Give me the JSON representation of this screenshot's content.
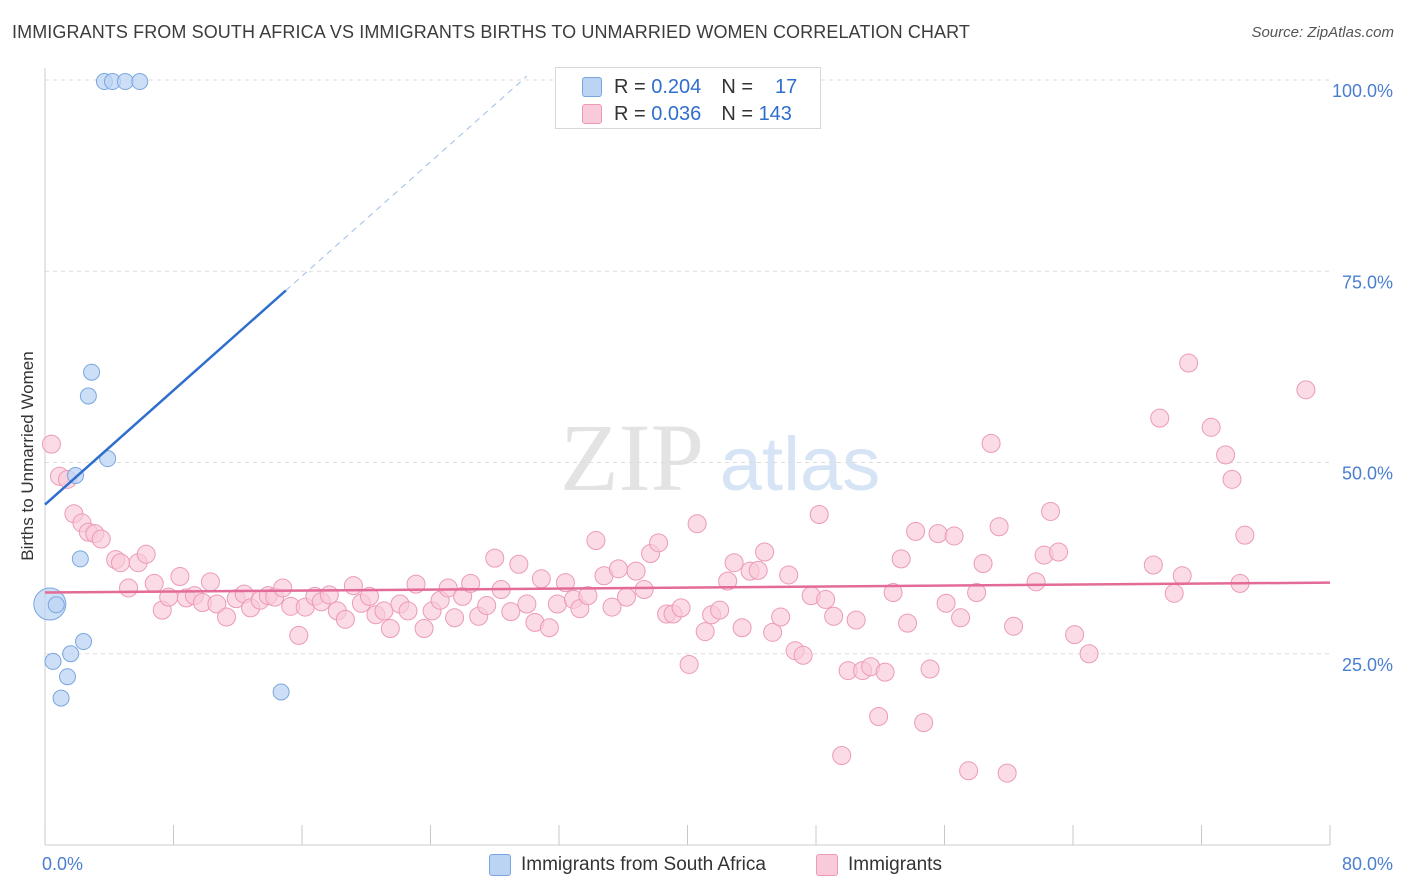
{
  "header": {
    "title": "IMMIGRANTS FROM SOUTH AFRICA VS IMMIGRANTS BIRTHS TO UNMARRIED WOMEN CORRELATION CHART",
    "source": "Source: ZipAtlas.com"
  },
  "watermark": {
    "part1": "ZIP",
    "part2": "atlas"
  },
  "legend": {
    "rows": [
      {
        "r_label": "R =",
        "r_value": "0.204",
        "n_label": "N =",
        "n_value": "17"
      },
      {
        "r_label": "R =",
        "r_value": "0.036",
        "n_label": "N =",
        "n_value": "143"
      }
    ]
  },
  "bottom_legend": {
    "series1": "Immigrants from South Africa",
    "series2": "Immigrants"
  },
  "colors": {
    "series1_fill": "#bcd4f3",
    "series1_stroke": "#7aa6df",
    "series1_line": "#2f6fcc",
    "series2_fill": "#f9cad9",
    "series2_stroke": "#ec9ab8",
    "series2_line": "#e36b97",
    "tick_text": "#4a7fd0",
    "grid": "#dddddd"
  },
  "chart_data": {
    "type": "scatter",
    "title": "IMMIGRANTS FROM SOUTH AFRICA VS IMMIGRANTS BIRTHS TO UNMARRIED WOMEN CORRELATION CHART",
    "xlabel": "",
    "ylabel": "Births to Unmarried Women",
    "xlim": [
      0,
      80
    ],
    "ylim": [
      0,
      100
    ],
    "x_ticks": [
      0,
      8,
      16,
      24,
      32,
      40,
      48,
      56,
      64,
      72,
      80
    ],
    "x_tick_labels": [
      {
        "value": 0,
        "label": "0.0%"
      },
      {
        "value": 80,
        "label": "80.0%"
      }
    ],
    "y_ticks": [
      {
        "value": 25,
        "label": "25.0%"
      },
      {
        "value": 50,
        "label": "50.0%"
      },
      {
        "value": 75,
        "label": "75.0%"
      },
      {
        "value": 100,
        "label": "100.0%"
      }
    ],
    "grid": "horizontal-dashed",
    "legend_position": "top-center",
    "series": [
      {
        "name": "Immigrants from South Africa",
        "r": 0.204,
        "n": 17,
        "trend": {
          "x0": 0,
          "y0": 44.5,
          "x1": 15,
          "y1": 72.5,
          "dashed_to_x": 30,
          "dashed_to_y": 100.5
        },
        "points": [
          {
            "x": 3.7,
            "y": 99.8
          },
          {
            "x": 4.2,
            "y": 99.8
          },
          {
            "x": 5.0,
            "y": 99.8
          },
          {
            "x": 5.9,
            "y": 99.8
          },
          {
            "x": 2.9,
            "y": 61.8
          },
          {
            "x": 2.7,
            "y": 58.7
          },
          {
            "x": 3.9,
            "y": 50.5
          },
          {
            "x": 1.9,
            "y": 48.3
          },
          {
            "x": 2.2,
            "y": 37.4
          },
          {
            "x": 0.3,
            "y": 31.5,
            "big": true
          },
          {
            "x": 0.7,
            "y": 31.4
          },
          {
            "x": 2.4,
            "y": 26.6
          },
          {
            "x": 1.6,
            "y": 25.0
          },
          {
            "x": 0.5,
            "y": 24.0
          },
          {
            "x": 1.4,
            "y": 22.0
          },
          {
            "x": 1.0,
            "y": 19.2
          },
          {
            "x": 14.7,
            "y": 20.0
          }
        ]
      },
      {
        "name": "Immigrants",
        "r": 0.036,
        "n": 143,
        "trend": {
          "x0": 0,
          "y0": 33.0,
          "x1": 80,
          "y1": 34.3
        },
        "points": [
          {
            "x": 0.4,
            "y": 52.4
          },
          {
            "x": 0.9,
            "y": 48.2
          },
          {
            "x": 1.4,
            "y": 47.8
          },
          {
            "x": 1.8,
            "y": 43.3
          },
          {
            "x": 2.3,
            "y": 42.1
          },
          {
            "x": 2.7,
            "y": 40.9
          },
          {
            "x": 3.1,
            "y": 40.7
          },
          {
            "x": 3.5,
            "y": 40.0
          },
          {
            "x": 4.4,
            "y": 37.3
          },
          {
            "x": 4.7,
            "y": 36.9
          },
          {
            "x": 5.2,
            "y": 33.6
          },
          {
            "x": 5.8,
            "y": 36.9
          },
          {
            "x": 6.3,
            "y": 38.0
          },
          {
            "x": 6.8,
            "y": 34.2
          },
          {
            "x": 7.3,
            "y": 30.7
          },
          {
            "x": 7.7,
            "y": 32.4
          },
          {
            "x": 8.4,
            "y": 35.1
          },
          {
            "x": 8.8,
            "y": 32.3
          },
          {
            "x": 9.3,
            "y": 32.6
          },
          {
            "x": 9.8,
            "y": 31.7
          },
          {
            "x": 10.3,
            "y": 34.4
          },
          {
            "x": 10.7,
            "y": 31.5
          },
          {
            "x": 11.3,
            "y": 29.8
          },
          {
            "x": 11.9,
            "y": 32.2
          },
          {
            "x": 12.4,
            "y": 32.8
          },
          {
            "x": 12.8,
            "y": 31.0
          },
          {
            "x": 13.4,
            "y": 32.0
          },
          {
            "x": 13.9,
            "y": 32.6
          },
          {
            "x": 14.3,
            "y": 32.4
          },
          {
            "x": 14.8,
            "y": 33.6
          },
          {
            "x": 15.3,
            "y": 31.2
          },
          {
            "x": 15.8,
            "y": 27.4
          },
          {
            "x": 16.2,
            "y": 31.1
          },
          {
            "x": 16.8,
            "y": 32.5
          },
          {
            "x": 17.2,
            "y": 31.8
          },
          {
            "x": 17.7,
            "y": 32.7
          },
          {
            "x": 18.2,
            "y": 30.6
          },
          {
            "x": 18.7,
            "y": 29.5
          },
          {
            "x": 19.2,
            "y": 33.9
          },
          {
            "x": 19.7,
            "y": 31.6
          },
          {
            "x": 20.2,
            "y": 32.5
          },
          {
            "x": 20.6,
            "y": 30.1
          },
          {
            "x": 21.1,
            "y": 30.6
          },
          {
            "x": 21.5,
            "y": 28.3
          },
          {
            "x": 22.1,
            "y": 31.5
          },
          {
            "x": 22.6,
            "y": 30.6
          },
          {
            "x": 23.1,
            "y": 34.1
          },
          {
            "x": 23.6,
            "y": 28.3
          },
          {
            "x": 24.1,
            "y": 30.6
          },
          {
            "x": 24.6,
            "y": 32.0
          },
          {
            "x": 25.1,
            "y": 33.6
          },
          {
            "x": 25.5,
            "y": 29.7
          },
          {
            "x": 26.0,
            "y": 32.5
          },
          {
            "x": 26.5,
            "y": 34.2
          },
          {
            "x": 27.0,
            "y": 29.9
          },
          {
            "x": 27.5,
            "y": 31.3
          },
          {
            "x": 28.0,
            "y": 37.5
          },
          {
            "x": 28.4,
            "y": 33.4
          },
          {
            "x": 29.0,
            "y": 30.5
          },
          {
            "x": 29.5,
            "y": 36.7
          },
          {
            "x": 30.0,
            "y": 31.5
          },
          {
            "x": 30.5,
            "y": 29.1
          },
          {
            "x": 30.9,
            "y": 34.8
          },
          {
            "x": 31.4,
            "y": 28.4
          },
          {
            "x": 31.9,
            "y": 31.5
          },
          {
            "x": 32.4,
            "y": 34.3
          },
          {
            "x": 32.9,
            "y": 32.1
          },
          {
            "x": 33.3,
            "y": 30.9
          },
          {
            "x": 33.8,
            "y": 32.6
          },
          {
            "x": 34.3,
            "y": 39.8
          },
          {
            "x": 34.8,
            "y": 35.2
          },
          {
            "x": 35.3,
            "y": 31.1
          },
          {
            "x": 35.7,
            "y": 36.1
          },
          {
            "x": 36.2,
            "y": 32.4
          },
          {
            "x": 36.8,
            "y": 35.8
          },
          {
            "x": 37.3,
            "y": 33.4
          },
          {
            "x": 37.7,
            "y": 38.1
          },
          {
            "x": 38.2,
            "y": 39.5
          },
          {
            "x": 38.7,
            "y": 30.2
          },
          {
            "x": 39.1,
            "y": 30.2
          },
          {
            "x": 39.6,
            "y": 31.0
          },
          {
            "x": 40.1,
            "y": 23.6
          },
          {
            "x": 40.6,
            "y": 42.0
          },
          {
            "x": 41.1,
            "y": 27.9
          },
          {
            "x": 41.5,
            "y": 30.1
          },
          {
            "x": 42.0,
            "y": 30.7
          },
          {
            "x": 42.5,
            "y": 34.5
          },
          {
            "x": 42.9,
            "y": 36.9
          },
          {
            "x": 43.4,
            "y": 28.4
          },
          {
            "x": 43.9,
            "y": 35.8
          },
          {
            "x": 44.4,
            "y": 35.9
          },
          {
            "x": 44.8,
            "y": 38.3
          },
          {
            "x": 45.3,
            "y": 27.8
          },
          {
            "x": 45.8,
            "y": 29.8
          },
          {
            "x": 46.3,
            "y": 35.3
          },
          {
            "x": 46.7,
            "y": 25.4
          },
          {
            "x": 47.2,
            "y": 24.8
          },
          {
            "x": 47.7,
            "y": 32.6
          },
          {
            "x": 48.2,
            "y": 43.2
          },
          {
            "x": 48.6,
            "y": 32.1
          },
          {
            "x": 49.1,
            "y": 29.9
          },
          {
            "x": 49.6,
            "y": 11.7
          },
          {
            "x": 50.0,
            "y": 22.8
          },
          {
            "x": 50.5,
            "y": 29.4
          },
          {
            "x": 50.9,
            "y": 22.8
          },
          {
            "x": 51.4,
            "y": 23.3
          },
          {
            "x": 51.9,
            "y": 16.8
          },
          {
            "x": 52.3,
            "y": 22.6
          },
          {
            "x": 52.8,
            "y": 33.0
          },
          {
            "x": 53.3,
            "y": 37.4
          },
          {
            "x": 53.7,
            "y": 29.0
          },
          {
            "x": 54.2,
            "y": 41.0
          },
          {
            "x": 54.7,
            "y": 16.0
          },
          {
            "x": 55.1,
            "y": 23.0
          },
          {
            "x": 55.6,
            "y": 40.7
          },
          {
            "x": 56.1,
            "y": 31.6
          },
          {
            "x": 56.6,
            "y": 40.4
          },
          {
            "x": 57.0,
            "y": 29.7
          },
          {
            "x": 57.5,
            "y": 9.7
          },
          {
            "x": 58.0,
            "y": 33.0
          },
          {
            "x": 58.4,
            "y": 36.8
          },
          {
            "x": 58.9,
            "y": 52.5
          },
          {
            "x": 59.4,
            "y": 41.6
          },
          {
            "x": 59.9,
            "y": 9.4
          },
          {
            "x": 60.3,
            "y": 28.6
          },
          {
            "x": 61.7,
            "y": 34.4
          },
          {
            "x": 62.2,
            "y": 37.9
          },
          {
            "x": 62.6,
            "y": 43.6
          },
          {
            "x": 63.1,
            "y": 38.3
          },
          {
            "x": 64.1,
            "y": 27.5
          },
          {
            "x": 65.0,
            "y": 25.0
          },
          {
            "x": 69.0,
            "y": 36.6
          },
          {
            "x": 69.4,
            "y": 55.8
          },
          {
            "x": 70.3,
            "y": 32.9
          },
          {
            "x": 70.8,
            "y": 35.2
          },
          {
            "x": 71.2,
            "y": 63.0
          },
          {
            "x": 72.6,
            "y": 54.6
          },
          {
            "x": 73.5,
            "y": 51.0
          },
          {
            "x": 73.9,
            "y": 47.8
          },
          {
            "x": 74.4,
            "y": 34.2
          },
          {
            "x": 74.7,
            "y": 40.5
          },
          {
            "x": 78.5,
            "y": 59.5
          }
        ]
      }
    ]
  }
}
